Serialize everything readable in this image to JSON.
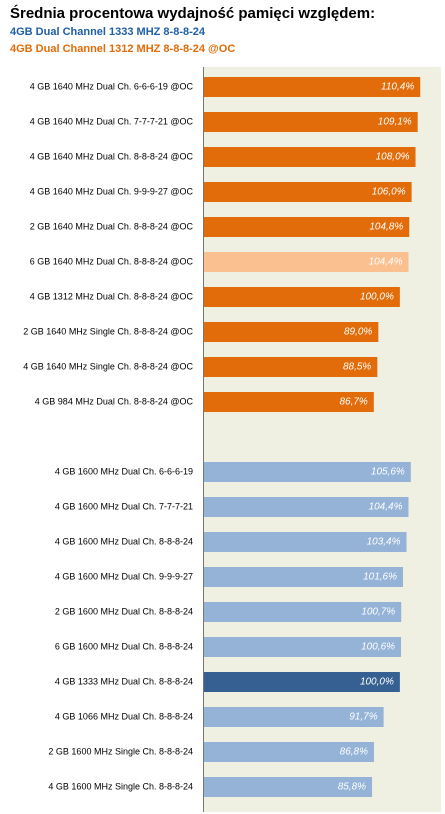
{
  "chart_data": {
    "type": "bar",
    "title": "Średnia procentowa wydajność  pamięci względem:",
    "subtitles": [
      {
        "text": "4GB Dual Channel 1333 MHZ  8-8-8-24",
        "color": "#1f5fa8"
      },
      {
        "text": "4GB Dual Channel 1312 MHZ  8-8-8-24 @OC",
        "color": "#e36c0a"
      }
    ],
    "xlim": [
      0,
      121
    ],
    "groups": [
      {
        "categories": [
          "4 GB 1640 MHz Dual Ch. 6-6-6-19 @OC",
          "4 GB 1640 MHz Dual Ch. 7-7-7-21 @OC",
          "4 GB 1640 MHz Dual Ch. 8-8-8-24 @OC",
          "4 GB 1640 MHz Dual Ch. 9-9-9-27 @OC",
          "2 GB 1640 MHz Dual Ch. 8-8-8-24 @OC",
          "6 GB 1640 MHz Dual Ch. 8-8-8-24 @OC",
          "4 GB 1312 MHz Dual Ch. 8-8-8-24 @OC",
          "2 GB 1640 MHz Single Ch. 8-8-8-24 @OC",
          "4 GB 1640 MHz Single Ch. 8-8-8-24 @OC",
          "4 GB 984 MHz Dual Ch. 8-8-8-24 @OC"
        ],
        "values": [
          110.4,
          109.1,
          108.0,
          106.0,
          104.8,
          104.4,
          100.0,
          89.0,
          88.5,
          86.7
        ],
        "value_labels": [
          "110,4%",
          "109,1%",
          "108,0%",
          "106,0%",
          "104,8%",
          "104,4%",
          "100,0%",
          "89,0%",
          "88,5%",
          "86,7%"
        ],
        "colors": [
          "#e36c0a",
          "#e36c0a",
          "#e36c0a",
          "#e36c0a",
          "#e36c0a",
          "#fac090",
          "#e36c0a",
          "#e36c0a",
          "#e36c0a",
          "#e36c0a"
        ]
      },
      {
        "categories": [
          "4 GB 1600 MHz Dual Ch. 6-6-6-19",
          "4 GB 1600 MHz Dual Ch. 7-7-7-21",
          "4 GB 1600 MHz Dual Ch. 8-8-8-24",
          "4 GB 1600 MHz Dual Ch. 9-9-9-27",
          "2 GB 1600 MHz Dual Ch. 8-8-8-24",
          "6 GB 1600 MHz Dual Ch. 8-8-8-24",
          "4 GB 1333 MHz Dual Ch. 8-8-8-24",
          "4 GB 1066 MHz Dual Ch. 8-8-8-24",
          "2 GB 1600 MHz Single Ch. 8-8-8-24",
          "4 GB 1600 MHz Single Ch. 8-8-8-24"
        ],
        "values": [
          105.6,
          104.4,
          103.4,
          101.6,
          100.7,
          100.6,
          100.0,
          91.7,
          86.8,
          85.8
        ],
        "value_labels": [
          "105,6%",
          "104,4%",
          "103,4%",
          "101,6%",
          "100,7%",
          "100,6%",
          "100,0%",
          "91,7%",
          "86,8%",
          "85,8%"
        ],
        "colors": [
          "#95b3d7",
          "#95b3d7",
          "#95b3d7",
          "#95b3d7",
          "#95b3d7",
          "#95b3d7",
          "#366092",
          "#95b3d7",
          "#95b3d7",
          "#95b3d7"
        ]
      }
    ]
  }
}
